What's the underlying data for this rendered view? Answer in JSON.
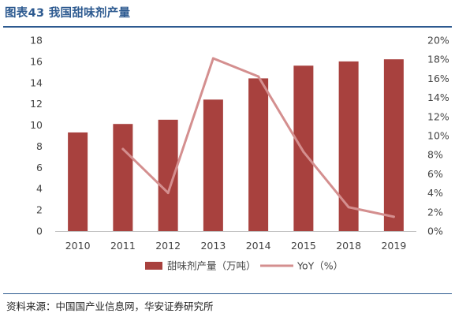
{
  "header": {
    "title": "图表43 我国甜味剂产量"
  },
  "footer": {
    "source": "资料来源：中国国产业信息网，华安证券研究所"
  },
  "colors": {
    "bar": "#a8413e",
    "line": "#d48f8f",
    "title": "#2d5a90"
  },
  "chart_data": {
    "type": "bar",
    "title": "图表43 我国甜味剂产量",
    "categories": [
      "2010",
      "2011",
      "2012",
      "2013",
      "2014",
      "2015",
      "2018",
      "2019"
    ],
    "series": [
      {
        "name": "甜味剂产量（万吨）",
        "type": "bar",
        "axis": "left",
        "values": [
          9.3,
          10.1,
          10.5,
          12.4,
          14.4,
          15.6,
          16.0,
          16.2
        ]
      },
      {
        "name": "YoY（%）",
        "type": "line",
        "axis": "right",
        "values": [
          null,
          8.6,
          4.0,
          18.1,
          16.2,
          8.3,
          2.5,
          1.5
        ]
      }
    ],
    "y_left": {
      "min": 0,
      "max": 18,
      "ticks": [
        "0",
        "2",
        "4",
        "6",
        "8",
        "10",
        "12",
        "14",
        "16",
        "18"
      ]
    },
    "y_right": {
      "min": 0,
      "max": 20,
      "ticks": [
        "0%",
        "2%",
        "4%",
        "6%",
        "8%",
        "10%",
        "12%",
        "14%",
        "16%",
        "18%",
        "20%"
      ]
    },
    "grid": false,
    "legend_position": "bottom"
  }
}
